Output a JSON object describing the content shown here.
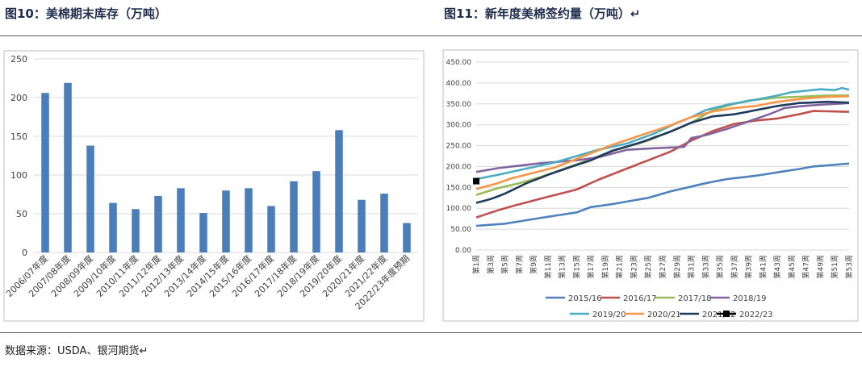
{
  "header": {
    "left_title": "图10：美棉期末库存（万吨）",
    "right_title": "图11：新年度美棉签约量（万吨）↵"
  },
  "footer": {
    "source": "数据来源：USDA、银河期货↵"
  },
  "chart_data": [
    {
      "type": "bar",
      "title": "",
      "categories": [
        "2006/07年度",
        "2007/08年度",
        "2008/09年度",
        "2009/10年度",
        "2010/11年度",
        "2011/12年度",
        "2012/13年度",
        "2013/14年度",
        "2014/15年度",
        "2015/16年度",
        "2016/17年度",
        "2017/18年度",
        "2018/19年度",
        "2019/20年度",
        "2020/21年度",
        "2021/22年度",
        "2022/23年度预期"
      ],
      "values": [
        206,
        219,
        138,
        64,
        56,
        73,
        83,
        51,
        80,
        83,
        60,
        92,
        105,
        158,
        68,
        76,
        38
      ],
      "ylim": [
        0,
        250
      ],
      "yticks": [
        0,
        50,
        100,
        150,
        200,
        250
      ],
      "color": "#4a7ebb",
      "grid": true
    },
    {
      "type": "line",
      "title": "",
      "ylim": [
        0,
        450
      ],
      "yticks": [
        "0.00",
        "50.00",
        "100.00",
        "150.00",
        "200.00",
        "250.00",
        "300.00",
        "350.00",
        "400.00",
        "450.00"
      ],
      "xticks": [
        "第1周",
        "第3周",
        "第5周",
        "第7周",
        "第9周",
        "第11周",
        "第13周",
        "第15周",
        "第17周",
        "第19周",
        "第21周",
        "第23周",
        "第25周",
        "第27周",
        "第29周",
        "第31周",
        "第33周",
        "第35周",
        "第37周",
        "第39周",
        "第41周",
        "第43周",
        "第45周",
        "第47周",
        "第49周",
        "第51周",
        "第53周"
      ],
      "legend_position": "bottom",
      "series": [
        {
          "name": "2015/16",
          "color": "#4f81bd",
          "knots": [
            [
              1,
              58
            ],
            [
              5,
              63
            ],
            [
              10,
              77
            ],
            [
              15,
              90
            ],
            [
              17,
              103
            ],
            [
              20,
              110
            ],
            [
              25,
              125
            ],
            [
              28,
              140
            ],
            [
              30,
              148
            ],
            [
              33,
              160
            ],
            [
              36,
              170
            ],
            [
              40,
              178
            ],
            [
              43,
              186
            ],
            [
              46,
              194
            ],
            [
              48,
              200
            ],
            [
              53,
              207
            ]
          ]
        },
        {
          "name": "2016/17",
          "color": "#c0504d",
          "knots": [
            [
              1,
              78
            ],
            [
              4,
              95
            ],
            [
              6,
              105
            ],
            [
              10,
              123
            ],
            [
              15,
              145
            ],
            [
              18,
              168
            ],
            [
              22,
              195
            ],
            [
              25,
              215
            ],
            [
              28,
              235
            ],
            [
              31,
              262
            ],
            [
              34,
              285
            ],
            [
              37,
              302
            ],
            [
              40,
              310
            ],
            [
              43,
              315
            ],
            [
              46,
              325
            ],
            [
              48,
              333
            ],
            [
              53,
              331
            ]
          ]
        },
        {
          "name": "2017/18",
          "color": "#9bbb59",
          "knots": [
            [
              1,
              132
            ],
            [
              4,
              148
            ],
            [
              7,
              160
            ],
            [
              10,
              175
            ],
            [
              15,
              205
            ],
            [
              20,
              237
            ],
            [
              25,
              262
            ],
            [
              28,
              283
            ],
            [
              31,
              305
            ],
            [
              34,
              335
            ],
            [
              37,
              350
            ],
            [
              39,
              358
            ],
            [
              43,
              365
            ],
            [
              46,
              367
            ],
            [
              50,
              370
            ],
            [
              53,
              370
            ]
          ]
        },
        {
          "name": "2018/19",
          "color": "#8064a2",
          "knots": [
            [
              1,
              187
            ],
            [
              4,
              196
            ],
            [
              7,
              202
            ],
            [
              10,
              208
            ],
            [
              15,
              215
            ],
            [
              18,
              222
            ],
            [
              22,
              240
            ],
            [
              26,
              244
            ],
            [
              30,
              247
            ],
            [
              31,
              268
            ],
            [
              33,
              275
            ],
            [
              36,
              290
            ],
            [
              39,
              308
            ],
            [
              42,
              326
            ],
            [
              44,
              340
            ],
            [
              46,
              344
            ],
            [
              49,
              348
            ],
            [
              53,
              352
            ]
          ]
        },
        {
          "name": "2019/20",
          "color": "#4bacc6",
          "knots": [
            [
              1,
              170
            ],
            [
              4,
              180
            ],
            [
              8,
              195
            ],
            [
              12,
              210
            ],
            [
              15,
              225
            ],
            [
              18,
              240
            ],
            [
              22,
              255
            ],
            [
              26,
              280
            ],
            [
              29,
              305
            ],
            [
              31,
              318
            ],
            [
              33,
              335
            ],
            [
              36,
              348
            ],
            [
              40,
              360
            ],
            [
              43,
              370
            ],
            [
              45,
              378
            ],
            [
              49,
              385
            ],
            [
              51,
              383
            ],
            [
              52,
              388
            ],
            [
              53,
              384
            ]
          ]
        },
        {
          "name": "2020/21",
          "color": "#f79646",
          "knots": [
            [
              1,
              146
            ],
            [
              4,
              160
            ],
            [
              6,
              172
            ],
            [
              9,
              185
            ],
            [
              12,
              198
            ],
            [
              16,
              225
            ],
            [
              20,
              252
            ],
            [
              24,
              275
            ],
            [
              28,
              298
            ],
            [
              31,
              318
            ],
            [
              34,
              332
            ],
            [
              37,
              340
            ],
            [
              40,
              345
            ],
            [
              43,
              355
            ],
            [
              47,
              363
            ],
            [
              50,
              367
            ],
            [
              53,
              368
            ]
          ]
        },
        {
          "name": "2021/22",
          "color": "#1f3a5f",
          "knots": [
            [
              1,
              113
            ],
            [
              3,
              122
            ],
            [
              5,
              135
            ],
            [
              8,
              160
            ],
            [
              11,
              180
            ],
            [
              14,
              198
            ],
            [
              17,
              215
            ],
            [
              20,
              238
            ],
            [
              24,
              258
            ],
            [
              28,
              283
            ],
            [
              31,
              305
            ],
            [
              34,
              320
            ],
            [
              37,
              325
            ],
            [
              40,
              335
            ],
            [
              43,
              345
            ],
            [
              46,
              352
            ],
            [
              50,
              355
            ],
            [
              53,
              353
            ]
          ]
        },
        {
          "name": "2022/23",
          "color": "#000000",
          "marker": "square",
          "points": [
            [
              1,
              165
            ]
          ]
        }
      ]
    }
  ]
}
